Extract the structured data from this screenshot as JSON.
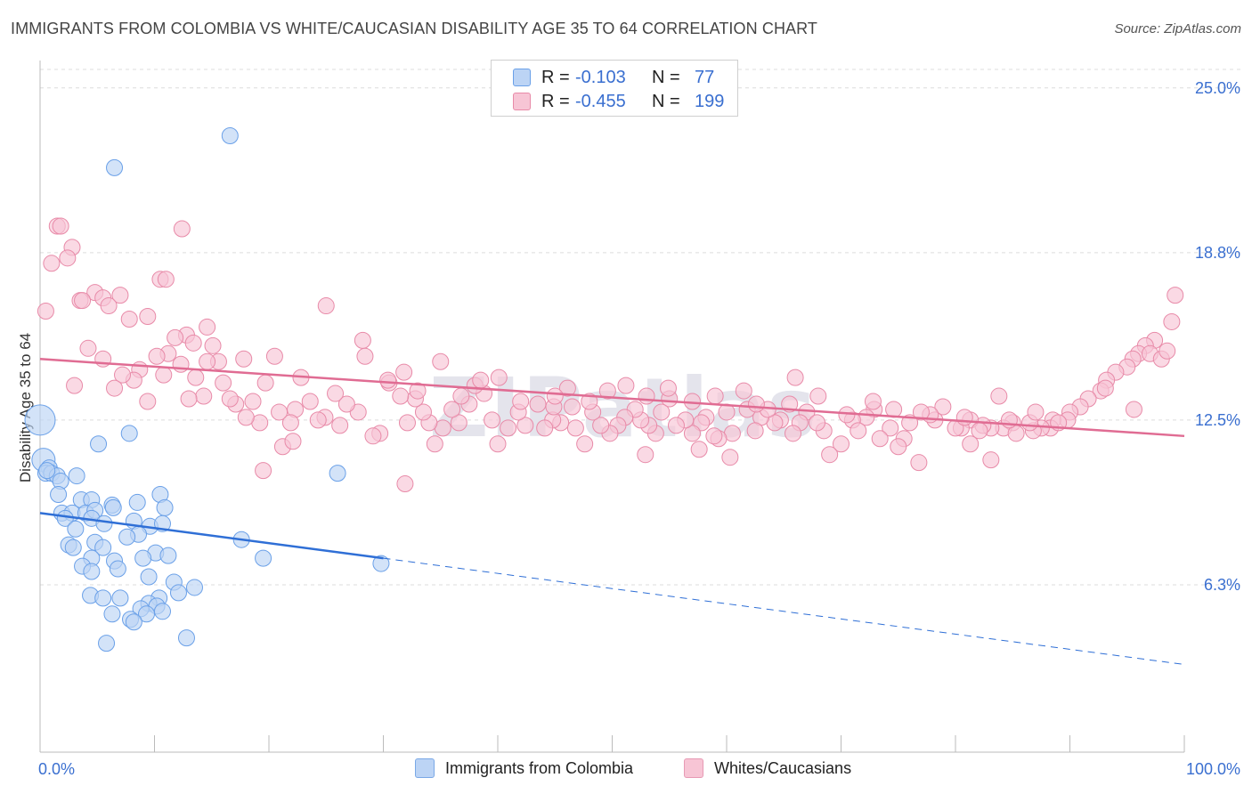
{
  "title": "IMMIGRANTS FROM COLOMBIA VS WHITE/CAUCASIAN DISABILITY AGE 35 TO 64 CORRELATION CHART",
  "source": "Source: ZipAtlas.com",
  "watermark": "ZIPatlas",
  "legend_top": [
    {
      "r_label": "R =",
      "r_value": "-0.103",
      "n_label": "N =",
      "n_value": "77",
      "color": "#6aa0e8",
      "fill": "#bcd4f5"
    },
    {
      "r_label": "R =",
      "r_value": "-0.455",
      "n_label": "N =",
      "n_value": "199",
      "color": "#e88aa8",
      "fill": "#f7c5d5"
    }
  ],
  "legend_bottom": [
    {
      "label": "Immigrants from Colombia",
      "fill": "#bcd4f5",
      "stroke": "#7aa8e6"
    },
    {
      "label": "Whites/Caucasians",
      "fill": "#f7c5d5",
      "stroke": "#e79ab4"
    }
  ],
  "chart_data": {
    "type": "scatter",
    "title": "IMMIGRANTS FROM COLOMBIA VS WHITE/CAUCASIAN DISABILITY AGE 35 TO 64 CORRELATION CHART",
    "xlabel": "",
    "ylabel": "Disability Age 35 to 64",
    "xlim": [
      0,
      100
    ],
    "ylim": [
      0,
      26.3
    ],
    "x_tick_labels": [
      "0.0%",
      "100.0%"
    ],
    "y_ticks": [
      6.3,
      12.5,
      18.8,
      25.0
    ],
    "y_tick_labels": [
      "6.3%",
      "12.5%",
      "18.8%",
      "25.0%"
    ],
    "grid": true,
    "series": [
      {
        "name": "Immigrants from Colombia",
        "color": "#6aa0e8",
        "fill": "#bcd4f5",
        "trend": {
          "x0": 0,
          "y0": 9.0,
          "x1": 30,
          "y1": 7.3,
          "dash_to_x": 100,
          "dash_to_y": 3.3
        },
        "points": [
          [
            16.6,
            23.2
          ],
          [
            6.5,
            22.0
          ],
          [
            0.0,
            12.5
          ],
          [
            0.3,
            11.0
          ],
          [
            0.8,
            10.7
          ],
          [
            0.5,
            10.5
          ],
          [
            1.0,
            10.5
          ],
          [
            1.5,
            10.4
          ],
          [
            0.6,
            10.6
          ],
          [
            1.8,
            10.2
          ],
          [
            3.2,
            10.4
          ],
          [
            5.1,
            11.6
          ],
          [
            7.8,
            12.0
          ],
          [
            26.0,
            10.5
          ],
          [
            1.6,
            9.7
          ],
          [
            3.6,
            9.5
          ],
          [
            4.5,
            9.5
          ],
          [
            6.3,
            9.3
          ],
          [
            8.5,
            9.4
          ],
          [
            10.5,
            9.7
          ],
          [
            10.9,
            9.2
          ],
          [
            1.9,
            9.0
          ],
          [
            2.8,
            9.0
          ],
          [
            4.0,
            9.0
          ],
          [
            4.8,
            9.1
          ],
          [
            6.4,
            9.2
          ],
          [
            2.2,
            8.8
          ],
          [
            4.5,
            8.8
          ],
          [
            5.6,
            8.6
          ],
          [
            8.2,
            8.7
          ],
          [
            9.6,
            8.5
          ],
          [
            10.7,
            8.6
          ],
          [
            3.1,
            8.4
          ],
          [
            8.6,
            8.2
          ],
          [
            7.6,
            8.1
          ],
          [
            17.6,
            8.0
          ],
          [
            2.5,
            7.8
          ],
          [
            4.8,
            7.9
          ],
          [
            2.9,
            7.7
          ],
          [
            5.5,
            7.7
          ],
          [
            10.1,
            7.5
          ],
          [
            11.2,
            7.4
          ],
          [
            4.5,
            7.3
          ],
          [
            6.5,
            7.2
          ],
          [
            9.0,
            7.3
          ],
          [
            3.7,
            7.0
          ],
          [
            6.8,
            6.9
          ],
          [
            19.5,
            7.3
          ],
          [
            29.8,
            7.1
          ],
          [
            4.5,
            6.8
          ],
          [
            9.5,
            6.6
          ],
          [
            11.7,
            6.4
          ],
          [
            13.5,
            6.2
          ],
          [
            4.4,
            5.9
          ],
          [
            5.5,
            5.8
          ],
          [
            7.0,
            5.8
          ],
          [
            10.4,
            5.8
          ],
          [
            12.1,
            6.0
          ],
          [
            9.5,
            5.6
          ],
          [
            10.2,
            5.5
          ],
          [
            8.8,
            5.4
          ],
          [
            9.3,
            5.2
          ],
          [
            10.7,
            5.3
          ],
          [
            7.9,
            5.0
          ],
          [
            6.3,
            5.2
          ],
          [
            8.2,
            4.9
          ],
          [
            12.8,
            4.3
          ],
          [
            5.8,
            4.1
          ]
        ]
      },
      {
        "name": "Whites/Caucasians",
        "color": "#e88aa8",
        "fill": "#f7c5d5",
        "trend": {
          "x0": 0,
          "y0": 14.8,
          "x1": 100,
          "y1": 11.9
        },
        "points": [
          [
            1.5,
            19.8
          ],
          [
            1.8,
            19.8
          ],
          [
            12.4,
            19.7
          ],
          [
            2.8,
            19.0
          ],
          [
            2.4,
            18.6
          ],
          [
            1.0,
            18.4
          ],
          [
            10.5,
            17.8
          ],
          [
            11.0,
            17.8
          ],
          [
            4.8,
            17.3
          ],
          [
            5.5,
            17.1
          ],
          [
            7.0,
            17.2
          ],
          [
            3.5,
            17.0
          ],
          [
            3.7,
            17.0
          ],
          [
            6.0,
            16.8
          ],
          [
            25.0,
            16.8
          ],
          [
            0.5,
            16.6
          ],
          [
            9.4,
            16.4
          ],
          [
            7.8,
            16.3
          ],
          [
            14.6,
            16.0
          ],
          [
            12.8,
            15.7
          ],
          [
            28.2,
            15.5
          ],
          [
            99.2,
            17.2
          ],
          [
            98.9,
            16.2
          ],
          [
            97.4,
            15.5
          ],
          [
            96.6,
            15.3
          ],
          [
            96.0,
            15.0
          ],
          [
            97.0,
            15.0
          ],
          [
            98.0,
            14.8
          ],
          [
            95.5,
            14.8
          ],
          [
            95.0,
            14.5
          ],
          [
            98.5,
            15.1
          ],
          [
            94.0,
            14.3
          ],
          [
            93.2,
            14.0
          ],
          [
            92.7,
            13.6
          ],
          [
            91.6,
            13.3
          ],
          [
            90.9,
            13.0
          ],
          [
            90.0,
            12.8
          ],
          [
            89.8,
            12.5
          ],
          [
            88.5,
            12.5
          ],
          [
            88.3,
            12.2
          ],
          [
            87.5,
            12.2
          ],
          [
            86.8,
            12.1
          ],
          [
            86.5,
            12.4
          ],
          [
            85.0,
            12.4
          ],
          [
            84.2,
            12.2
          ],
          [
            83.8,
            13.4
          ],
          [
            83.1,
            12.2
          ],
          [
            82.4,
            12.3
          ],
          [
            81.3,
            12.5
          ],
          [
            80.5,
            12.2
          ],
          [
            80.0,
            12.2
          ],
          [
            78.9,
            13.0
          ],
          [
            78.2,
            12.5
          ],
          [
            77.8,
            12.7
          ],
          [
            76.0,
            12.4
          ],
          [
            75.5,
            11.8
          ],
          [
            75.0,
            11.5
          ],
          [
            74.3,
            12.2
          ],
          [
            73.4,
            11.8
          ],
          [
            72.9,
            12.9
          ],
          [
            72.2,
            12.6
          ],
          [
            71.0,
            12.5
          ],
          [
            70.0,
            11.6
          ],
          [
            69.0,
            11.2
          ],
          [
            68.5,
            12.1
          ],
          [
            67.0,
            12.8
          ],
          [
            66.4,
            12.4
          ],
          [
            65.8,
            12.0
          ],
          [
            64.7,
            12.5
          ],
          [
            64.2,
            12.4
          ],
          [
            63.0,
            12.6
          ],
          [
            62.5,
            12.1
          ],
          [
            61.8,
            12.9
          ],
          [
            60.5,
            12.0
          ],
          [
            60.0,
            12.8
          ],
          [
            59.3,
            11.8
          ],
          [
            58.2,
            12.6
          ],
          [
            57.8,
            12.4
          ],
          [
            57.0,
            12.0
          ],
          [
            56.4,
            12.5
          ],
          [
            55.6,
            12.3
          ],
          [
            55.0,
            13.3
          ],
          [
            54.3,
            12.8
          ],
          [
            53.8,
            12.0
          ],
          [
            53.2,
            12.3
          ],
          [
            52.5,
            12.5
          ],
          [
            52.0,
            12.9
          ],
          [
            51.1,
            12.6
          ],
          [
            50.5,
            12.3
          ],
          [
            49.8,
            12.0
          ],
          [
            49.0,
            12.3
          ],
          [
            48.3,
            12.8
          ],
          [
            47.6,
            11.6
          ],
          [
            46.8,
            12.2
          ],
          [
            46.1,
            13.7
          ],
          [
            45.5,
            12.4
          ],
          [
            44.8,
            12.5
          ],
          [
            44.1,
            12.2
          ],
          [
            43.5,
            13.1
          ],
          [
            42.4,
            12.3
          ],
          [
            41.8,
            12.8
          ],
          [
            40.9,
            12.2
          ],
          [
            40.0,
            11.6
          ],
          [
            39.5,
            12.5
          ],
          [
            38.8,
            13.5
          ],
          [
            38.0,
            13.8
          ],
          [
            37.5,
            13.1
          ],
          [
            36.6,
            12.4
          ],
          [
            36.0,
            12.9
          ],
          [
            35.2,
            12.2
          ],
          [
            34.5,
            11.6
          ],
          [
            34.0,
            12.4
          ],
          [
            33.5,
            12.8
          ],
          [
            32.8,
            13.3
          ],
          [
            32.1,
            12.4
          ],
          [
            31.5,
            13.4
          ],
          [
            30.5,
            13.9
          ],
          [
            29.7,
            12.0
          ],
          [
            29.1,
            11.9
          ],
          [
            28.4,
            14.9
          ],
          [
            27.8,
            12.8
          ],
          [
            26.8,
            13.1
          ],
          [
            26.2,
            12.3
          ],
          [
            25.8,
            13.5
          ],
          [
            24.9,
            12.6
          ],
          [
            24.3,
            12.5
          ],
          [
            23.6,
            13.2
          ],
          [
            22.8,
            14.1
          ],
          [
            22.3,
            12.9
          ],
          [
            21.9,
            12.4
          ],
          [
            21.2,
            11.5
          ],
          [
            20.9,
            12.8
          ],
          [
            20.5,
            14.9
          ],
          [
            19.7,
            13.9
          ],
          [
            19.2,
            12.4
          ],
          [
            18.6,
            13.2
          ],
          [
            18.0,
            12.6
          ],
          [
            17.8,
            14.8
          ],
          [
            17.1,
            13.1
          ],
          [
            16.6,
            13.3
          ],
          [
            16.0,
            13.9
          ],
          [
            15.6,
            14.7
          ],
          [
            15.1,
            15.3
          ],
          [
            14.6,
            14.7
          ],
          [
            14.3,
            13.4
          ],
          [
            13.6,
            14.1
          ],
          [
            13.0,
            13.3
          ],
          [
            12.3,
            14.6
          ],
          [
            11.8,
            15.6
          ],
          [
            11.2,
            15.0
          ],
          [
            10.8,
            14.2
          ],
          [
            10.2,
            14.9
          ],
          [
            9.4,
            13.2
          ],
          [
            8.7,
            14.4
          ],
          [
            8.2,
            14.0
          ],
          [
            7.2,
            14.2
          ],
          [
            6.5,
            13.7
          ],
          [
            5.5,
            14.8
          ],
          [
            4.2,
            15.2
          ],
          [
            3.0,
            13.8
          ],
          [
            30.4,
            14.0
          ],
          [
            31.8,
            14.3
          ],
          [
            33.0,
            13.6
          ],
          [
            35.0,
            14.7
          ],
          [
            36.8,
            13.4
          ],
          [
            38.5,
            14.0
          ],
          [
            40.1,
            14.1
          ],
          [
            42.0,
            13.2
          ],
          [
            44.9,
            13.0
          ],
          [
            46.5,
            13.0
          ],
          [
            48.0,
            13.2
          ],
          [
            49.6,
            13.6
          ],
          [
            51.2,
            13.8
          ],
          [
            53.0,
            13.4
          ],
          [
            54.9,
            13.7
          ],
          [
            57.0,
            13.2
          ],
          [
            59.0,
            13.4
          ],
          [
            61.5,
            13.6
          ],
          [
            63.6,
            12.9
          ],
          [
            65.5,
            13.1
          ],
          [
            68.0,
            13.4
          ],
          [
            70.5,
            12.7
          ],
          [
            72.8,
            13.2
          ],
          [
            74.6,
            12.9
          ],
          [
            77.0,
            12.8
          ],
          [
            80.8,
            12.6
          ],
          [
            82.1,
            12.1
          ],
          [
            85.3,
            12.0
          ],
          [
            87.0,
            12.8
          ],
          [
            89.0,
            12.4
          ],
          [
            19.5,
            10.6
          ],
          [
            31.9,
            10.1
          ],
          [
            52.9,
            11.2
          ],
          [
            60.3,
            11.1
          ],
          [
            76.8,
            10.9
          ],
          [
            83.1,
            11.0
          ],
          [
            13.4,
            15.4
          ],
          [
            22.1,
            11.7
          ],
          [
            62.6,
            13.1
          ],
          [
            67.9,
            12.4
          ],
          [
            71.5,
            12.1
          ],
          [
            45.0,
            13.4
          ],
          [
            57.6,
            11.4
          ],
          [
            95.6,
            12.9
          ],
          [
            93.1,
            13.7
          ],
          [
            81.3,
            11.6
          ],
          [
            66.0,
            14.1
          ],
          [
            84.7,
            12.5
          ],
          [
            58.9,
            11.9
          ]
        ]
      }
    ]
  }
}
